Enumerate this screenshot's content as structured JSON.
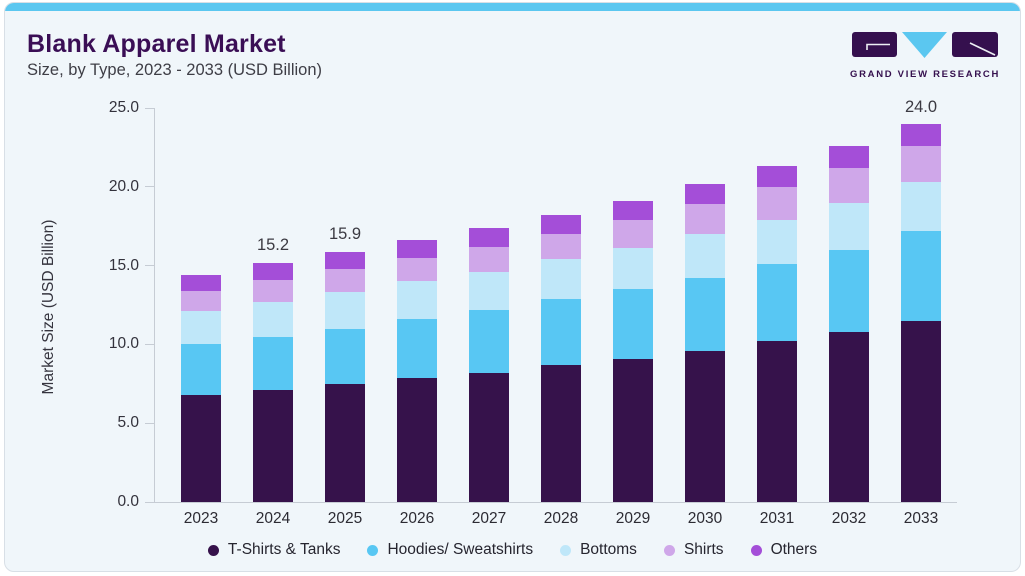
{
  "header": {
    "title": "Blank Apparel Market",
    "subtitle": "Size, by Type, 2023 - 2033 (USD Billion)"
  },
  "logo": {
    "text": "GRAND VIEW RESEARCH",
    "purple": "#35104E",
    "blue": "#5BC7F0"
  },
  "colors": {
    "accent_top_bar": "#5BC7F0",
    "title": "#3A0E55",
    "card_background": "#F0F6FA",
    "axis_line": "#C6CCD4"
  },
  "chart_data": {
    "type": "bar",
    "stacked": true,
    "title": "Blank Apparel Market Size, by Type, 2023 - 2033 (USD Billion)",
    "categories": [
      "2023",
      "2024",
      "2025",
      "2026",
      "2027",
      "2028",
      "2029",
      "2030",
      "2031",
      "2032",
      "2033"
    ],
    "series": [
      {
        "name": "T-Shirts & Tanks",
        "color": "#36124B",
        "values": [
          6.8,
          7.1,
          7.5,
          7.9,
          8.2,
          8.7,
          9.1,
          9.6,
          10.2,
          10.8,
          11.5
        ]
      },
      {
        "name": "Hoodies/ Sweatshirts",
        "color": "#58C7F3",
        "values": [
          3.2,
          3.4,
          3.5,
          3.7,
          4.0,
          4.2,
          4.4,
          4.6,
          4.9,
          5.2,
          5.7
        ]
      },
      {
        "name": "Bottoms",
        "color": "#BFE7F9",
        "values": [
          2.1,
          2.2,
          2.3,
          2.4,
          2.4,
          2.5,
          2.6,
          2.8,
          2.8,
          3.0,
          3.1
        ]
      },
      {
        "name": "Shirts",
        "color": "#CFA7E9",
        "values": [
          1.3,
          1.4,
          1.5,
          1.5,
          1.6,
          1.6,
          1.8,
          1.9,
          2.1,
          2.2,
          2.3
        ]
      },
      {
        "name": "Others",
        "color": "#A44ED8",
        "values": [
          1.0,
          1.1,
          1.1,
          1.1,
          1.2,
          1.2,
          1.2,
          1.3,
          1.3,
          1.4,
          1.4
        ]
      }
    ],
    "totals": [
      14.4,
      15.2,
      15.9,
      16.6,
      17.4,
      18.2,
      19.1,
      20.2,
      21.3,
      22.6,
      24.0
    ],
    "totals_labeled": {
      "2024": "15.2",
      "2025": "15.9",
      "2033": "24.0"
    },
    "xlabel": "",
    "ylabel": "Market Size (USD Billion)",
    "yticks": [
      "0.0",
      "5.0",
      "10.0",
      "15.0",
      "20.0",
      "25.0"
    ],
    "ylim": [
      0,
      25
    ],
    "grid": false,
    "legend_position": "bottom"
  }
}
